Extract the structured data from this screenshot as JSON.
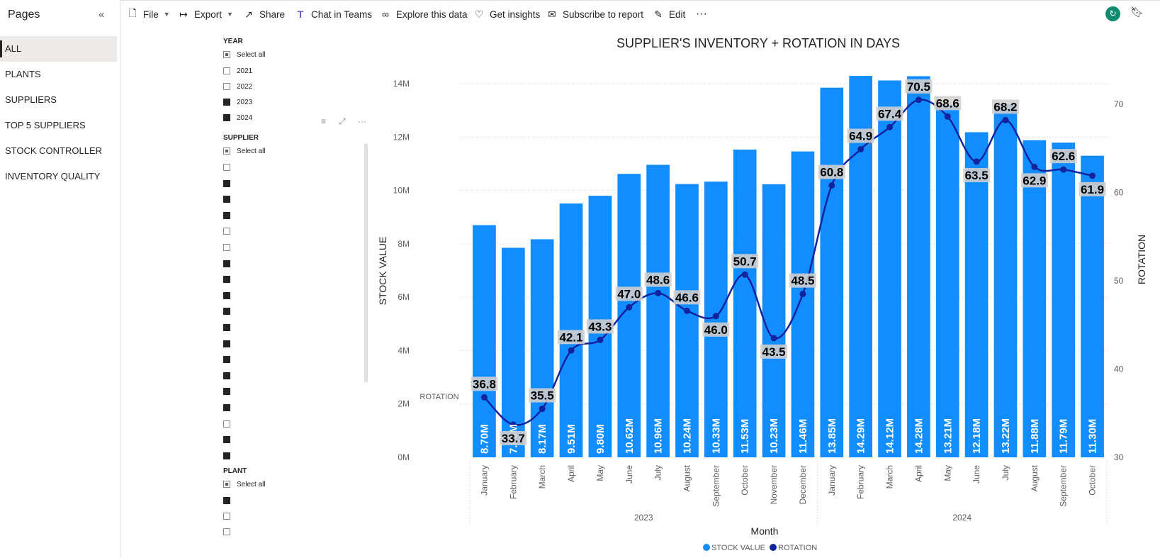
{
  "pages_pane": {
    "title": "Pages",
    "items": [
      {
        "label": "ALL",
        "active": true
      },
      {
        "label": "PLANTS"
      },
      {
        "label": "SUPPLIERS"
      },
      {
        "label": "TOP 5 SUPPLIERS"
      },
      {
        "label": "STOCK CONTROLLER"
      },
      {
        "label": "INVENTORY QUALITY"
      }
    ]
  },
  "toolbar": {
    "file": "File",
    "export": "Export",
    "share": "Share",
    "chat_in_teams": "Chat in Teams",
    "explore": "Explore this data",
    "insights": "Get insights",
    "subscribe": "Subscribe to report",
    "edit": "Edit",
    "more": "···"
  },
  "slicers": {
    "year": {
      "title": "YEAR",
      "select_all": "Select all",
      "options": [
        {
          "label": "2021",
          "checked": false
        },
        {
          "label": "2022",
          "checked": false
        },
        {
          "label": "2023",
          "checked": true
        },
        {
          "label": "2024",
          "checked": true
        }
      ]
    },
    "supplier": {
      "title": "SUPPLIER",
      "select_all": "Select all",
      "checks": [
        false,
        true,
        true,
        true,
        false,
        false,
        true,
        true,
        true,
        true,
        true,
        true,
        true,
        true,
        true,
        true,
        false,
        true,
        true
      ]
    },
    "plant": {
      "title": "PLANT",
      "select_all": "Select all",
      "checks": [
        true,
        false,
        false
      ]
    }
  },
  "colors": {
    "stock_bar": "#118dff",
    "rotation_line": "#12239e"
  },
  "chart_data": {
    "type": "bar",
    "title": "SUPPLIER'S INVENTORY + ROTATION IN DAYS",
    "xlabel": "Month",
    "ylabel": "STOCK VALUE",
    "y2label": "ROTATION",
    "side_label": "ROTATION",
    "ylim": [
      0,
      14000000
    ],
    "y_ticks": [
      "0M",
      "2M",
      "4M",
      "6M",
      "8M",
      "10M",
      "12M",
      "14M"
    ],
    "y2lim": [
      30,
      72
    ],
    "y2_ticks": [
      "30",
      "40",
      "50",
      "60",
      "70"
    ],
    "year_groups": [
      {
        "year": "2023",
        "count": 12
      },
      {
        "year": "2024",
        "count": 10
      }
    ],
    "categories": [
      "January",
      "February",
      "March",
      "April",
      "May",
      "June",
      "July",
      "August",
      "September",
      "October",
      "November",
      "December",
      "January",
      "February",
      "March",
      "April",
      "May",
      "June",
      "July",
      "August",
      "September",
      "October"
    ],
    "series": [
      {
        "name": "STOCK VALUE",
        "type": "bar",
        "values": [
          8.7,
          7.85,
          8.17,
          9.51,
          9.8,
          10.62,
          10.96,
          10.24,
          10.33,
          11.53,
          10.23,
          11.46,
          13.85,
          14.29,
          14.12,
          14.28,
          13.21,
          12.18,
          13.22,
          11.88,
          11.79,
          11.3
        ],
        "labels": [
          "8.70M",
          "7.85M",
          "8.17M",
          "9.51M",
          "9.80M",
          "10.62M",
          "10.96M",
          "10.24M",
          "10.33M",
          "11.53M",
          "10.23M",
          "11.46M",
          "13.85M",
          "14.29M",
          "14.12M",
          "14.28M",
          "13.21M",
          "12.18M",
          "13.22M",
          "11.88M",
          "11.79M",
          "11.30M"
        ]
      },
      {
        "name": "ROTATION",
        "type": "line",
        "values": [
          36.8,
          33.7,
          35.5,
          42.1,
          43.3,
          47.0,
          48.6,
          46.6,
          46.0,
          50.7,
          43.5,
          48.5,
          60.8,
          64.9,
          67.4,
          70.5,
          68.6,
          63.5,
          68.2,
          62.9,
          62.6,
          61.9
        ],
        "labels": [
          "36.8",
          "33.7",
          "35.5",
          "42.1",
          "43.3",
          "47.0",
          "48.6",
          "46.6",
          "46.0",
          "50.7",
          "43.5",
          "48.5",
          "60.8",
          "64.9",
          "67.4",
          "70.5",
          "68.6",
          "63.5",
          "68.2",
          "62.9",
          "62.6",
          "61.9"
        ]
      }
    ],
    "legend": {
      "position": "bottom",
      "items": [
        "STOCK VALUE",
        "ROTATION"
      ]
    },
    "grid": true
  }
}
